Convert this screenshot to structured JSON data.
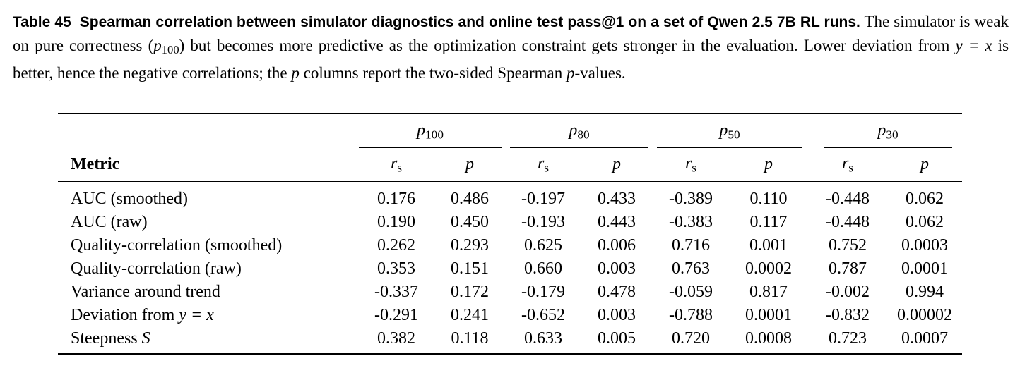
{
  "caption": {
    "label": "Table 45",
    "bold_title": "Spearman correlation between simulator diagnostics and online test pass@1 on a set of Qwen 2.5 7B RL runs.",
    "text_1": " The simulator is weak on pure correctness (",
    "math_p": "p",
    "math_p_sub": "100",
    "text_2": ") but becomes more predictive as the optimization constraint gets stronger in the evaluation. Lower deviation from ",
    "math_yx": "y = x",
    "text_3": " is better, hence the negative correlations; the ",
    "math_p2": "p",
    "text_4": " columns report the two-sided Spearman ",
    "math_p3": "p",
    "text_5": "-values."
  },
  "table": {
    "metric_header": "Metric",
    "groups": [
      {
        "sym": "p",
        "sub": "100"
      },
      {
        "sym": "p",
        "sub": "80"
      },
      {
        "sym": "p",
        "sub": "50"
      },
      {
        "sym": "p",
        "sub": "30"
      }
    ],
    "sub_headers": {
      "rs_sym": "r",
      "rs_sub": "s",
      "p": "p"
    },
    "rows": [
      {
        "metric": "AUC (smoothed)",
        "cells": [
          "0.176",
          "0.486",
          "-0.197",
          "0.433",
          "-0.389",
          "0.110",
          "-0.448",
          "0.062"
        ]
      },
      {
        "metric": "AUC (raw)",
        "cells": [
          "0.190",
          "0.450",
          "-0.193",
          "0.443",
          "-0.383",
          "0.117",
          "-0.448",
          "0.062"
        ]
      },
      {
        "metric": "Quality-correlation (smoothed)",
        "cells": [
          "0.262",
          "0.293",
          "0.625",
          "0.006",
          "0.716",
          "0.001",
          "0.752",
          "0.0003"
        ]
      },
      {
        "metric": "Quality-correlation (raw)",
        "cells": [
          "0.353",
          "0.151",
          "0.660",
          "0.003",
          "0.763",
          "0.0002",
          "0.787",
          "0.0001"
        ]
      },
      {
        "metric": "Variance around trend",
        "cells": [
          "-0.337",
          "0.172",
          "-0.179",
          "0.478",
          "-0.059",
          "0.817",
          "-0.002",
          "0.994"
        ]
      },
      {
        "metric_prefix": "Deviation from ",
        "metric_math": "y = x",
        "cells": [
          "-0.291",
          "0.241",
          "-0.652",
          "0.003",
          "-0.788",
          "0.0001",
          "-0.832",
          "0.00002"
        ]
      },
      {
        "metric_prefix": "Steepness ",
        "metric_math": "S",
        "cells": [
          "0.382",
          "0.118",
          "0.633",
          "0.005",
          "0.720",
          "0.0008",
          "0.723",
          "0.0007"
        ]
      }
    ]
  }
}
